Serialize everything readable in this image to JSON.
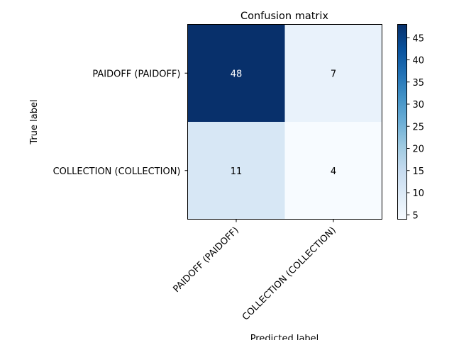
{
  "chart_data": {
    "type": "heatmap",
    "title": "Confusion matrix",
    "xlabel": "Predicted label",
    "ylabel": "True label",
    "x_categories": [
      "PAIDOFF (PAIDOFF)",
      "COLLECTION (COLLECTION)"
    ],
    "y_categories": [
      "PAIDOFF (PAIDOFF)",
      "COLLECTION (COLLECTION)"
    ],
    "values": [
      [
        48,
        7
      ],
      [
        11,
        4
      ]
    ],
    "colormap": "Blues",
    "colorbar": {
      "range": [
        4,
        48
      ],
      "ticks": [
        5,
        10,
        15,
        20,
        25,
        30,
        35,
        40,
        45
      ]
    }
  }
}
